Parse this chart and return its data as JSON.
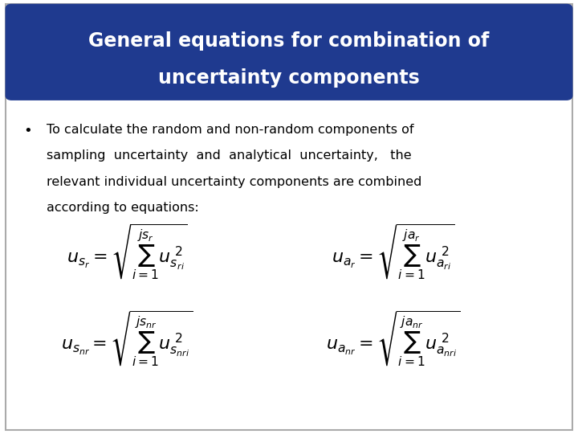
{
  "title_line1": "General equations for combination of",
  "title_line2": "uncertainty components",
  "title_bg_color": "#1F3A8F",
  "title_text_color": "#FFFFFF",
  "body_bg_color": "#FFFFFF",
  "bullet_text": "To calculate the random and non-random components of sampling uncertainty and analytical uncertainty,  the relevant individual uncertainty components are combined according to equations:",
  "eq1": "u_{s_r} = \\sqrt{\\sum_{i=1}^{js_r} u_{s_{r_i}}^{\\,2}}",
  "eq2": "u_{a_r} = \\sqrt{\\sum_{i=1}^{ja_r} u_{a_{r_i}}^{\\,2}}",
  "eq3": "u_{s_{nr}} = \\sqrt{\\sum_{i=1}^{js_{nr}} u_{s_{nr_i}}^{\\,2}}",
  "eq4": "u_{a_{nr}} = \\sqrt{\\sum_{i=1}^{ja_{nr}} u_{a_{nr_i}}^{\\,2}}",
  "eq_color": "#000000",
  "border_color": "#CCCCCC"
}
